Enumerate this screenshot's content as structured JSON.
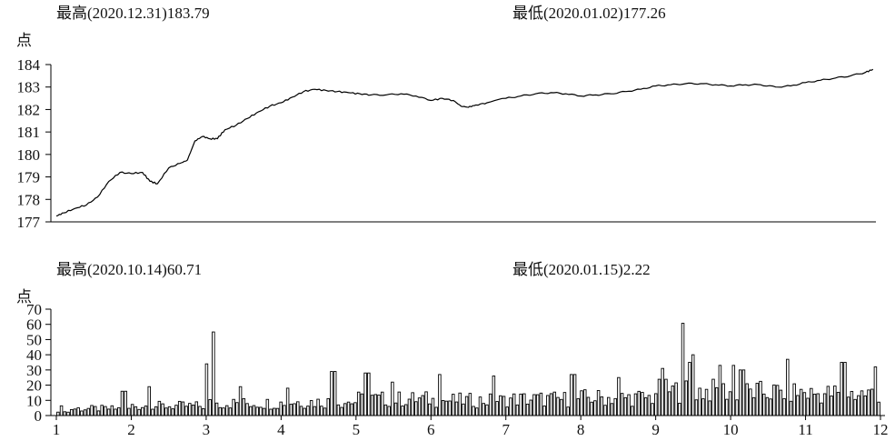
{
  "chart_data": [
    {
      "type": "line",
      "annotations": {
        "high": "最高(2020.12.31)183.79",
        "low": "最低(2020.01.02)177.26"
      },
      "ylabel": "点",
      "ylim": [
        177,
        184
      ],
      "yticks": [
        "177",
        "178",
        "179",
        "180",
        "181",
        "182",
        "183",
        "184"
      ],
      "x_range": [
        1,
        12
      ],
      "grid": false,
      "series": [
        {
          "x": [
            1.0,
            1.1,
            1.25,
            1.4,
            1.55,
            1.7,
            1.85,
            2.0,
            2.15,
            2.25,
            2.35,
            2.5,
            2.65,
            2.75,
            2.85,
            2.95,
            3.05,
            3.15,
            3.25,
            3.4,
            3.55,
            3.7,
            3.85,
            4.0,
            4.15,
            4.3,
            4.45,
            4.6,
            4.75,
            4.9,
            5.05,
            5.2,
            5.4,
            5.6,
            5.8,
            6.0,
            6.15,
            6.3,
            6.4,
            6.5,
            6.6,
            6.75,
            7.0,
            7.2,
            7.4,
            7.6,
            7.8,
            8.0,
            8.2,
            8.4,
            8.6,
            8.8,
            9.0,
            9.2,
            9.4,
            9.6,
            9.8,
            10.0,
            10.2,
            10.4,
            10.6,
            10.8,
            11.0,
            11.2,
            11.4,
            11.6,
            11.8,
            11.9
          ],
          "y": [
            177.26,
            177.4,
            177.6,
            177.75,
            178.1,
            178.8,
            179.2,
            179.15,
            179.2,
            178.8,
            178.7,
            179.4,
            179.6,
            179.75,
            180.6,
            180.8,
            180.7,
            180.7,
            181.1,
            181.3,
            181.6,
            181.9,
            182.15,
            182.3,
            182.55,
            182.8,
            182.9,
            182.85,
            182.8,
            182.75,
            182.7,
            182.65,
            182.65,
            182.7,
            182.6,
            182.4,
            182.5,
            182.4,
            182.15,
            182.1,
            182.2,
            182.3,
            182.5,
            182.6,
            182.7,
            182.75,
            182.7,
            182.6,
            182.65,
            182.7,
            182.8,
            182.9,
            183.05,
            183.1,
            183.15,
            183.15,
            183.1,
            183.05,
            183.1,
            183.1,
            183.0,
            183.05,
            183.2,
            183.3,
            183.4,
            183.5,
            183.65,
            183.79
          ]
        }
      ]
    },
    {
      "type": "bar",
      "annotations": {
        "high": "最高(2020.10.14)60.71",
        "low": "最低(2020.01.15)2.22"
      },
      "ylabel": "点",
      "ylim": [
        0,
        70
      ],
      "yticks": [
        "0",
        "10",
        "20",
        "30",
        "40",
        "50",
        "60",
        "70"
      ],
      "xticks": [
        "1",
        "2",
        "3",
        "4",
        "5",
        "6",
        "7",
        "8",
        "9",
        "10",
        "11",
        "12"
      ],
      "x_range": [
        1,
        12
      ],
      "grid": false,
      "value_stats": {
        "count": 244,
        "monthly_levels": [
          5,
          7,
          9,
          10,
          12,
          11,
          12,
          13,
          18,
          17,
          16,
          22
        ],
        "spikes": [
          {
            "x": 1.9,
            "value": 16
          },
          {
            "x": 2.25,
            "value": 19
          },
          {
            "x": 3.0,
            "value": 34
          },
          {
            "x": 3.1,
            "value": 55
          },
          {
            "x": 3.45,
            "value": 19
          },
          {
            "x": 4.1,
            "value": 18
          },
          {
            "x": 4.7,
            "value": 29
          },
          {
            "x": 5.15,
            "value": 28
          },
          {
            "x": 5.5,
            "value": 22
          },
          {
            "x": 6.1,
            "value": 27
          },
          {
            "x": 6.85,
            "value": 26
          },
          {
            "x": 7.9,
            "value": 27
          },
          {
            "x": 8.5,
            "value": 25
          },
          {
            "x": 9.1,
            "value": 31
          },
          {
            "x": 9.38,
            "value": 60.71
          },
          {
            "x": 9.45,
            "value": 35
          },
          {
            "x": 9.5,
            "value": 40
          },
          {
            "x": 9.85,
            "value": 33
          },
          {
            "x": 10.05,
            "value": 33
          },
          {
            "x": 10.15,
            "value": 30
          },
          {
            "x": 10.75,
            "value": 37
          },
          {
            "x": 11.5,
            "value": 35
          },
          {
            "x": 11.95,
            "value": 32
          }
        ],
        "min_point": {
          "x": 1.15,
          "value": 2.22
        }
      }
    }
  ]
}
